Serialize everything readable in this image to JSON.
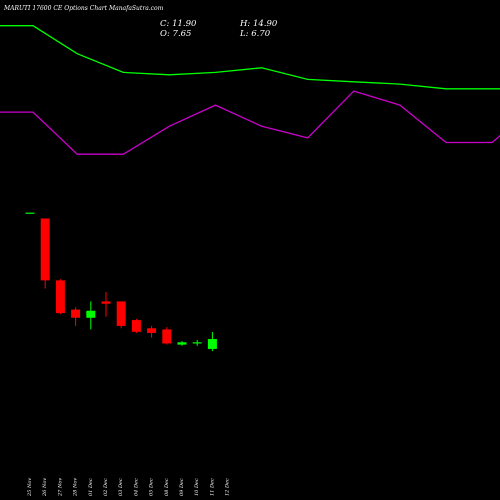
{
  "title": "MARUTI 17600  CE Options  Chart ManafaSutra.com",
  "ohlc": {
    "close": "C: 11.90",
    "high": "H: 14.90",
    "open": "O: 7.65",
    "low": "L: 6.70"
  },
  "colors": {
    "background": "#000000",
    "up": "#00ff00",
    "down": "#ff0000",
    "ma_fast": "#00ff00",
    "ma_slow": "#cc00cc",
    "text": "#ffffff"
  },
  "chart_data": {
    "type": "candlestick",
    "dates": [
      "25 Nov",
      "26 Nov",
      "27 Nov",
      "28 Nov",
      "01 Dec",
      "02 Dec",
      "03 Dec",
      "04 Dec",
      "05 Dec",
      "08 Dec",
      "09 Dec",
      "10 Dec",
      "11 Dec",
      "12 Dec"
    ],
    "candles": [
      {
        "date": "25 Nov",
        "open": 66.0,
        "high": 66.0,
        "low": 66.0,
        "close": 66.0
      },
      {
        "date": "26 Nov",
        "open": 63.5,
        "high": 63.5,
        "low": 33.5,
        "close": 37.0
      },
      {
        "date": "27 Nov",
        "open": 37.0,
        "high": 37.5,
        "low": 22.5,
        "close": 23.0
      },
      {
        "date": "28 Nov",
        "open": 24.5,
        "high": 25.5,
        "low": 17.5,
        "close": 21.0
      },
      {
        "date": "01 Dec",
        "open": 21.0,
        "high": 28.0,
        "low": 16.0,
        "close": 24.0
      },
      {
        "date": "02 Dec",
        "open": 28.0,
        "high": 32.0,
        "low": 21.5,
        "close": 27.0
      },
      {
        "date": "03 Dec",
        "open": 28.0,
        "high": 28.0,
        "low": 16.5,
        "close": 17.5
      },
      {
        "date": "04 Dec",
        "open": 20.0,
        "high": 20.5,
        "low": 14.5,
        "close": 15.0
      },
      {
        "date": "05 Dec",
        "open": 16.5,
        "high": 17.5,
        "low": 12.5,
        "close": 14.5
      },
      {
        "date": "08 Dec",
        "open": 16.0,
        "high": 17.0,
        "low": 9.5,
        "close": 10.0
      },
      {
        "date": "09 Dec",
        "open": 9.5,
        "high": 11.0,
        "low": 9.0,
        "close": 10.5
      },
      {
        "date": "10 Dec",
        "open": 10.0,
        "high": 11.5,
        "low": 9.0,
        "close": 10.5
      },
      {
        "date": "11 Dec",
        "open": 7.65,
        "high": 14.9,
        "low": 6.7,
        "close": 11.9
      }
    ],
    "series": [
      {
        "values": [
          146,
          146,
          134,
          126,
          125,
          126,
          128,
          123,
          122,
          121,
          119,
          119,
          119,
          126
        ]
      },
      {
        "values": [
          109,
          109,
          91,
          91,
          103,
          112,
          103,
          98,
          118,
          112,
          96,
          96,
          113,
          133
        ]
      }
    ],
    "ylim": [
      -57,
      157
    ],
    "xlim": [
      0,
      13.4
    ]
  }
}
